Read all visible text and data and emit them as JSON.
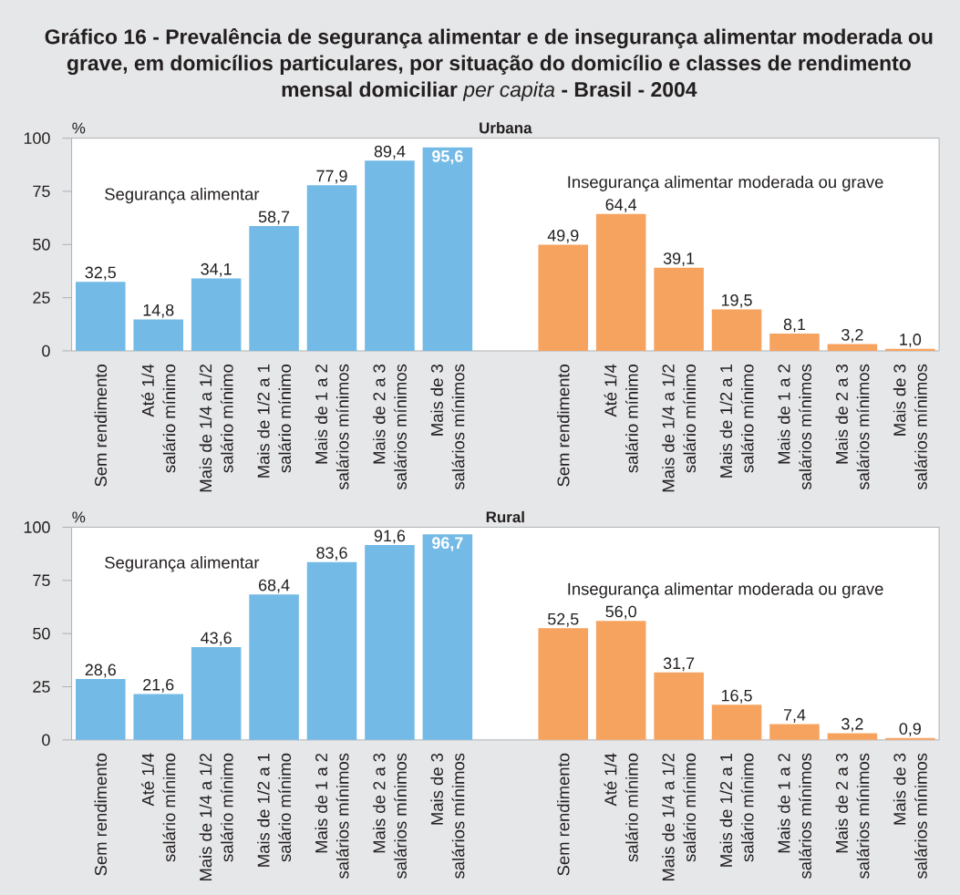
{
  "chart_data": [
    {
      "type": "bar",
      "title": "**Gráfico 16 - Prevalência de segurança alimentar e de insegurança alimentar moderada ou grave, em domicílios particulares, por situação do domicílio e classes de rendimento mensal domiciliar** *per capita* **- Brasil - 2004**",
      "subtitle": "Urbana",
      "ylabel": "%",
      "categories": [
        "Sem rendimento",
        "Até 1/4\nsalário mínimo",
        "Mais de 1/4 a 1/2\nsalário mínimo",
        "Mais de 1/2 a 1\nsalário mínimo",
        "Mais de 1 a 2\nsalários mínimos",
        "Mais de 2 a 3\nsalários mínimos",
        "Mais de 3\nsalários mínimos",
        null,
        "Sem rendimento",
        "Até 1/4\nsalário mínimo",
        "Mais de 1/4 a 1/2\nsalário mínimo",
        "Mais de 1/2 a 1\nsalário mínimo",
        "Mais de 1 a 2\nsalários mínimos",
        "Mais de 2 a 3\nsalários mínimos",
        "Mais de 3\nsalários mínimos"
      ],
      "series": [
        {
          "name": "Segurança alimentar",
          "color": "#73bae6",
          "values": [
            32.5,
            14.8,
            34.1,
            58.7,
            77.9,
            89.4,
            95.6,
            null,
            null,
            null,
            null,
            null,
            null,
            null,
            null
          ],
          "value_labels": [
            "32,5",
            "14,8",
            "34,1",
            "58,7",
            "77,9",
            "89,4",
            "95,6",
            null,
            null,
            null,
            null,
            null,
            null,
            null,
            null
          ]
        },
        {
          "name": "Insegurança alimentar moderada ou grave",
          "color": "#f7a360",
          "values": [
            null,
            null,
            null,
            null,
            null,
            null,
            null,
            null,
            49.9,
            64.4,
            39.1,
            19.5,
            8.1,
            3.2,
            1.0
          ],
          "value_labels": [
            null,
            null,
            null,
            null,
            null,
            null,
            null,
            null,
            "49,9",
            "64,4",
            "39,1",
            "19,5",
            "8,1",
            "3,2",
            "1,0"
          ]
        }
      ],
      "ylim": [
        0,
        100
      ],
      "yticks": [
        0,
        25,
        50,
        75,
        100
      ]
    },
    {
      "type": "bar",
      "subtitle": "Rural",
      "ylabel": "%",
      "categories": [
        "Sem rendimento",
        "Até 1/4\nsalário mínimo",
        "Mais de 1/4 a 1/2\nsalário mínimo",
        "Mais de 1/2 a 1\nsalário mínimo",
        "Mais de 1 a 2\nsalários mínimos",
        "Mais de 2 a 3\nsalários mínimos",
        "Mais de 3\nsalários mínimos",
        null,
        "Sem rendimento",
        "Até 1/4\nsalário mínimo",
        "Mais de 1/4 a 1/2\nsalário mínimo",
        "Mais de 1/2 a 1\nsalário mínimo",
        "Mais de 1 a 2\nsalários mínimos",
        "Mais de 2 a 3\nsalários mínimos",
        "Mais de 3\nsalários mínimos"
      ],
      "series": [
        {
          "name": "Segurança alimentar",
          "color": "#73bae6",
          "values": [
            28.6,
            21.6,
            43.6,
            68.4,
            83.6,
            91.6,
            96.7,
            null,
            null,
            null,
            null,
            null,
            null,
            null,
            null
          ],
          "value_labels": [
            "28,6",
            "21,6",
            "43,6",
            "68,4",
            "83,6",
            "91,6",
            "96,7",
            null,
            null,
            null,
            null,
            null,
            null,
            null,
            null
          ]
        },
        {
          "name": "Insegurança alimentar moderada ou grave",
          "color": "#f7a360",
          "values": [
            null,
            null,
            null,
            null,
            null,
            null,
            null,
            null,
            52.5,
            56.0,
            31.7,
            16.5,
            7.4,
            3.2,
            0.9
          ],
          "value_labels": [
            null,
            null,
            null,
            null,
            null,
            null,
            null,
            null,
            "52,5",
            "56,0",
            "31,7",
            "16,5",
            "7,4",
            "3,2",
            "0,9"
          ]
        }
      ],
      "ylim": [
        0,
        100
      ],
      "yticks": [
        0,
        25,
        50,
        75,
        100
      ]
    }
  ]
}
